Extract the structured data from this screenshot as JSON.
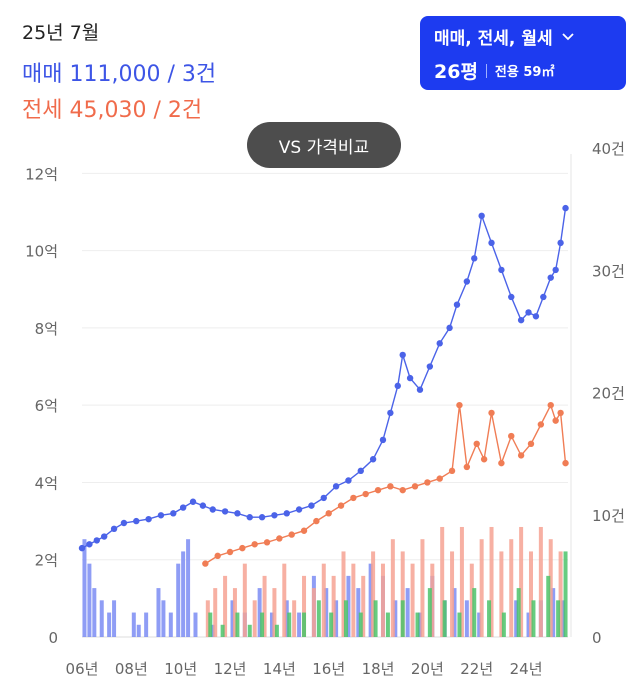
{
  "header": {
    "date": "25년 7월",
    "sale_summary": "매매 111,000 / 3건",
    "jeonse_summary": "전세 45,030 / 2건"
  },
  "filter": {
    "deal_types": "매매, 전세, 월세",
    "pyeong": "26평",
    "exclusive_area": "전용 59㎡"
  },
  "compare_button": "VS 가격비교",
  "colors": {
    "sale": "#4b63e8",
    "jeonse": "#f07d55",
    "volume_sale": "#7b8cf3",
    "volume_jeonse": "#f6a293",
    "volume_monthly": "#4cc36a",
    "filter_bg": "#1d3bf0",
    "compare_bg": "#4d4d4d"
  },
  "chart_data": {
    "type": "line",
    "x_tick_labels": [
      "06년",
      "08년",
      "10년",
      "12년",
      "14년",
      "16년",
      "18년",
      "20년",
      "22년",
      "24년"
    ],
    "y_left_tick_labels": [
      "0",
      "2억",
      "4억",
      "6억",
      "8억",
      "10억",
      "12억"
    ],
    "y_right_tick_labels": [
      "0",
      "10건",
      "20건",
      "30건",
      "40건"
    ],
    "ylim_price_eok": [
      0,
      12.5
    ],
    "ylim_count": [
      0,
      40
    ],
    "xlim_year": [
      2006.0,
      2025.7
    ],
    "series": [
      {
        "name": "매매",
        "kind": "line",
        "points": [
          [
            2006.0,
            2.3
          ],
          [
            2006.3,
            2.4
          ],
          [
            2006.6,
            2.5
          ],
          [
            2006.9,
            2.6
          ],
          [
            2007.3,
            2.8
          ],
          [
            2007.7,
            2.95
          ],
          [
            2008.2,
            3.0
          ],
          [
            2008.7,
            3.05
          ],
          [
            2009.2,
            3.15
          ],
          [
            2009.7,
            3.2
          ],
          [
            2010.1,
            3.35
          ],
          [
            2010.5,
            3.5
          ],
          [
            2010.9,
            3.4
          ],
          [
            2011.3,
            3.3
          ],
          [
            2011.8,
            3.25
          ],
          [
            2012.3,
            3.2
          ],
          [
            2012.8,
            3.1
          ],
          [
            2013.3,
            3.1
          ],
          [
            2013.8,
            3.15
          ],
          [
            2014.3,
            3.2
          ],
          [
            2014.8,
            3.3
          ],
          [
            2015.3,
            3.4
          ],
          [
            2015.8,
            3.6
          ],
          [
            2016.3,
            3.9
          ],
          [
            2016.8,
            4.05
          ],
          [
            2017.3,
            4.3
          ],
          [
            2017.8,
            4.6
          ],
          [
            2018.2,
            5.1
          ],
          [
            2018.5,
            5.8
          ],
          [
            2018.8,
            6.5
          ],
          [
            2019.0,
            7.3
          ],
          [
            2019.3,
            6.7
          ],
          [
            2019.7,
            6.4
          ],
          [
            2020.1,
            7.0
          ],
          [
            2020.5,
            7.6
          ],
          [
            2020.9,
            8.0
          ],
          [
            2021.2,
            8.6
          ],
          [
            2021.6,
            9.2
          ],
          [
            2021.9,
            9.8
          ],
          [
            2022.2,
            10.9
          ],
          [
            2022.6,
            10.2
          ],
          [
            2023.0,
            9.5
          ],
          [
            2023.4,
            8.8
          ],
          [
            2023.8,
            8.2
          ],
          [
            2024.1,
            8.4
          ],
          [
            2024.4,
            8.3
          ],
          [
            2024.7,
            8.8
          ],
          [
            2025.0,
            9.3
          ],
          [
            2025.2,
            9.5
          ],
          [
            2025.4,
            10.2
          ],
          [
            2025.6,
            11.1
          ]
        ]
      },
      {
        "name": "전세",
        "kind": "line",
        "points": [
          [
            2011.0,
            1.9
          ],
          [
            2011.5,
            2.1
          ],
          [
            2012.0,
            2.2
          ],
          [
            2012.5,
            2.3
          ],
          [
            2013.0,
            2.4
          ],
          [
            2013.5,
            2.45
          ],
          [
            2014.0,
            2.55
          ],
          [
            2014.5,
            2.65
          ],
          [
            2015.0,
            2.75
          ],
          [
            2015.5,
            3.0
          ],
          [
            2016.0,
            3.2
          ],
          [
            2016.5,
            3.4
          ],
          [
            2017.0,
            3.6
          ],
          [
            2017.5,
            3.7
          ],
          [
            2018.0,
            3.8
          ],
          [
            2018.5,
            3.9
          ],
          [
            2019.0,
            3.8
          ],
          [
            2019.5,
            3.9
          ],
          [
            2020.0,
            4.0
          ],
          [
            2020.5,
            4.1
          ],
          [
            2021.0,
            4.3
          ],
          [
            2021.3,
            6.0
          ],
          [
            2021.6,
            4.4
          ],
          [
            2022.0,
            5.0
          ],
          [
            2022.3,
            4.6
          ],
          [
            2022.6,
            5.8
          ],
          [
            2023.0,
            4.5
          ],
          [
            2023.4,
            5.2
          ],
          [
            2023.8,
            4.7
          ],
          [
            2024.2,
            5.0
          ],
          [
            2024.6,
            5.5
          ],
          [
            2025.0,
            6.0
          ],
          [
            2025.2,
            5.6
          ],
          [
            2025.4,
            5.8
          ],
          [
            2025.6,
            4.5
          ]
        ]
      },
      {
        "name": "매매 거래량",
        "kind": "bars",
        "y_axis": "count",
        "points": [
          [
            2006.1,
            8
          ],
          [
            2006.3,
            6
          ],
          [
            2006.5,
            4
          ],
          [
            2006.8,
            3
          ],
          [
            2007.1,
            2
          ],
          [
            2007.3,
            3
          ],
          [
            2008.1,
            2
          ],
          [
            2008.3,
            1
          ],
          [
            2008.6,
            2
          ],
          [
            2009.1,
            4
          ],
          [
            2009.3,
            3
          ],
          [
            2009.6,
            2
          ],
          [
            2009.9,
            6
          ],
          [
            2010.1,
            7
          ],
          [
            2010.3,
            8
          ],
          [
            2010.6,
            2
          ],
          [
            2011.3,
            1
          ],
          [
            2012.1,
            3
          ],
          [
            2012.6,
            2
          ],
          [
            2013.2,
            4
          ],
          [
            2013.7,
            2
          ],
          [
            2014.3,
            3
          ],
          [
            2014.8,
            2
          ],
          [
            2015.4,
            5
          ],
          [
            2015.9,
            4
          ],
          [
            2016.3,
            3
          ],
          [
            2016.8,
            5
          ],
          [
            2017.2,
            4
          ],
          [
            2017.7,
            6
          ],
          [
            2018.2,
            5
          ],
          [
            2018.7,
            3
          ],
          [
            2019.2,
            4
          ],
          [
            2019.7,
            2
          ],
          [
            2020.2,
            5
          ],
          [
            2020.7,
            3
          ],
          [
            2021.1,
            4
          ],
          [
            2021.6,
            3
          ],
          [
            2022.1,
            2
          ],
          [
            2023.6,
            3
          ],
          [
            2024.1,
            2
          ],
          [
            2024.6,
            3
          ],
          [
            2025.1,
            4
          ],
          [
            2025.5,
            3
          ]
        ]
      },
      {
        "name": "전세 거래량",
        "kind": "bars",
        "y_axis": "count",
        "points": [
          [
            2011.1,
            3
          ],
          [
            2011.4,
            4
          ],
          [
            2011.8,
            5
          ],
          [
            2012.2,
            4
          ],
          [
            2012.6,
            6
          ],
          [
            2013.0,
            3
          ],
          [
            2013.4,
            5
          ],
          [
            2013.8,
            4
          ],
          [
            2014.2,
            6
          ],
          [
            2014.6,
            3
          ],
          [
            2015.0,
            5
          ],
          [
            2015.4,
            4
          ],
          [
            2015.8,
            6
          ],
          [
            2016.2,
            5
          ],
          [
            2016.6,
            7
          ],
          [
            2017.0,
            6
          ],
          [
            2017.4,
            5
          ],
          [
            2017.8,
            7
          ],
          [
            2018.2,
            6
          ],
          [
            2018.6,
            8
          ],
          [
            2019.0,
            7
          ],
          [
            2019.4,
            6
          ],
          [
            2019.8,
            8
          ],
          [
            2020.2,
            6
          ],
          [
            2020.6,
            9
          ],
          [
            2021.0,
            7
          ],
          [
            2021.4,
            9
          ],
          [
            2021.8,
            6
          ],
          [
            2022.2,
            8
          ],
          [
            2022.6,
            9
          ],
          [
            2023.0,
            7
          ],
          [
            2023.4,
            8
          ],
          [
            2023.8,
            9
          ],
          [
            2024.2,
            7
          ],
          [
            2024.6,
            9
          ],
          [
            2025.0,
            8
          ],
          [
            2025.4,
            7
          ]
        ]
      },
      {
        "name": "월세 거래량",
        "kind": "bars",
        "y_axis": "count",
        "points": [
          [
            2011.2,
            2
          ],
          [
            2011.7,
            1
          ],
          [
            2012.3,
            2
          ],
          [
            2012.8,
            1
          ],
          [
            2013.3,
            2
          ],
          [
            2013.9,
            1
          ],
          [
            2014.4,
            2
          ],
          [
            2015.0,
            2
          ],
          [
            2015.6,
            3
          ],
          [
            2016.1,
            2
          ],
          [
            2016.7,
            3
          ],
          [
            2017.3,
            2
          ],
          [
            2017.9,
            3
          ],
          [
            2018.4,
            2
          ],
          [
            2019.0,
            3
          ],
          [
            2019.6,
            2
          ],
          [
            2020.1,
            4
          ],
          [
            2020.7,
            3
          ],
          [
            2021.3,
            2
          ],
          [
            2021.9,
            4
          ],
          [
            2022.5,
            3
          ],
          [
            2023.1,
            2
          ],
          [
            2023.7,
            4
          ],
          [
            2024.3,
            3
          ],
          [
            2024.9,
            5
          ],
          [
            2025.3,
            3
          ],
          [
            2025.6,
            7
          ]
        ]
      }
    ]
  }
}
